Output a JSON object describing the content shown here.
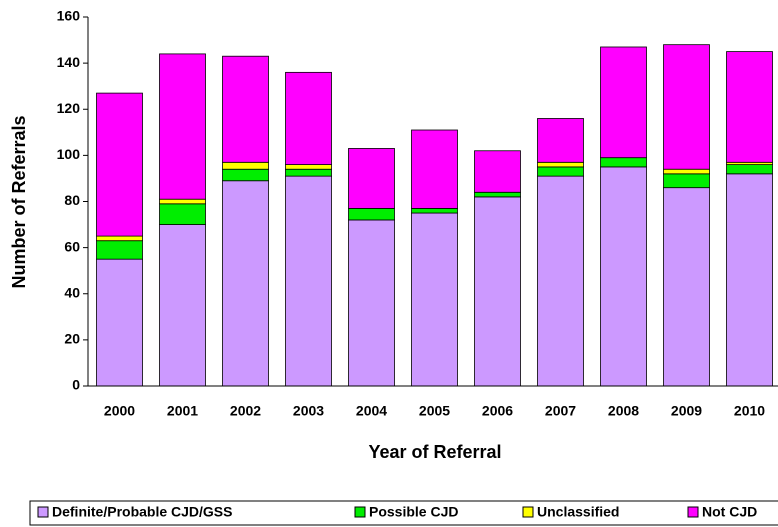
{
  "chart_data": {
    "type": "stacked_bar",
    "xlabel": "Year of Referral",
    "ylabel": "Number of Referrals",
    "categories": [
      "2000",
      "2001",
      "2002",
      "2003",
      "2004",
      "2005",
      "2006",
      "2007",
      "2008",
      "2009",
      "2010"
    ],
    "series": [
      {
        "name": "Definite/Probable CJD/GSS",
        "color": "#cc99ff",
        "values": [
          55,
          70,
          89,
          91,
          72,
          75,
          82,
          91,
          95,
          86,
          92
        ]
      },
      {
        "name": "Possible CJD",
        "color": "#00ee00",
        "values": [
          8,
          9,
          5,
          3,
          5,
          2,
          2,
          4,
          4,
          6,
          4
        ]
      },
      {
        "name": "Unclassified",
        "color": "#ffff00",
        "values": [
          2,
          2,
          3,
          2,
          0,
          0,
          0,
          2,
          0,
          2,
          1
        ]
      },
      {
        "name": "Not CJD",
        "color": "#ff00ff",
        "values": [
          62,
          63,
          46,
          40,
          26,
          34,
          18,
          19,
          48,
          54,
          48
        ]
      }
    ],
    "ylim": [
      0,
      160
    ],
    "yticks": [
      0,
      20,
      40,
      60,
      80,
      100,
      120,
      140,
      160
    ],
    "legend": "bottom"
  }
}
